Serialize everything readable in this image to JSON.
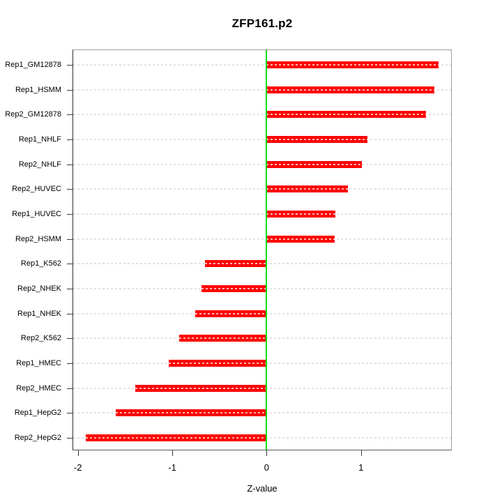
{
  "chart_data": {
    "type": "bar",
    "orientation": "horizontal",
    "title": "ZFP161.p2",
    "xlabel": "Z-value",
    "categories": [
      "Rep1_GM12878",
      "Rep1_HSMM",
      "Rep2_GM12878",
      "Rep1_NHLF",
      "Rep2_NHLF",
      "Rep2_HUVEC",
      "Rep1_HUVEC",
      "Rep2_HSMM",
      "Rep1_K562",
      "Rep2_NHEK",
      "Rep1_NHEK",
      "Rep2_K562",
      "Rep1_HMEC",
      "Rep2_HMEC",
      "Rep1_HepG2",
      "Rep2_HepG2"
    ],
    "values": [
      1.82,
      1.78,
      1.69,
      1.07,
      1.01,
      0.86,
      0.73,
      0.72,
      -0.65,
      -0.69,
      -0.76,
      -0.93,
      -1.04,
      -1.39,
      -1.6,
      -1.92
    ],
    "x_ticks": [
      "-2",
      "-1",
      "0",
      "1"
    ],
    "x_tick_values": [
      -2,
      -1,
      0,
      1
    ],
    "xlim": [
      -2.06,
      1.96
    ],
    "grid": "dashed horizontal line per category",
    "legend": "none",
    "colors": {
      "bar": "#ff0000",
      "zero_line": "#00dd00",
      "gridline": "#e2e2e2",
      "box_border": "#9b9b9b",
      "text": "#000000"
    }
  }
}
